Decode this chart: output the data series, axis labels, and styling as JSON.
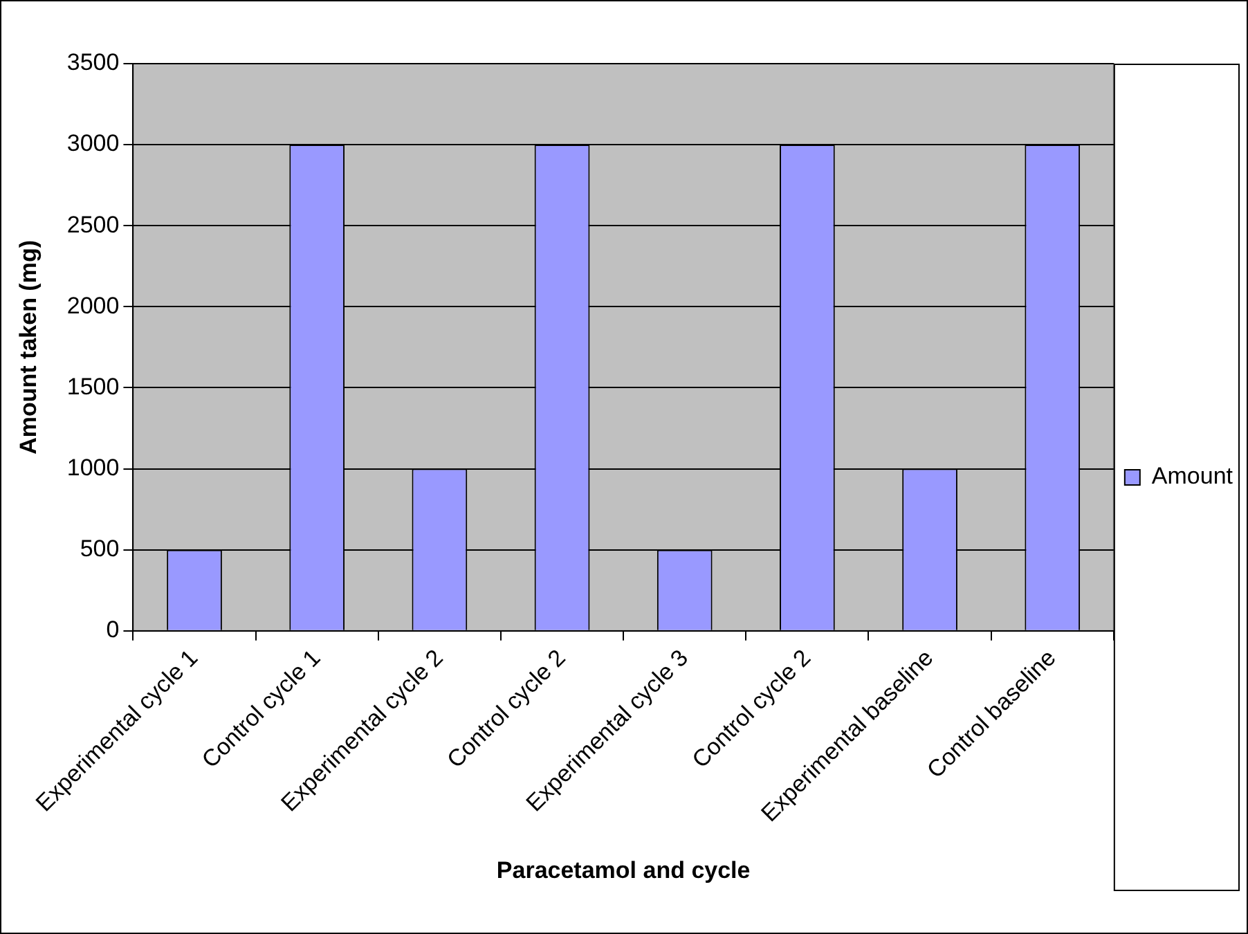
{
  "chart_data": {
    "type": "bar",
    "xlabel": "Paracetamol and cycle",
    "ylabel": "Amount taken (mg)",
    "categories": [
      "Experimental cycle 1",
      "Control cycle 1",
      "Experimental cycle 2",
      "Control cycle 2",
      "Experimental cycle 3",
      "Control cycle 2",
      "Experimental baseline",
      "Control baseline"
    ],
    "series": [
      {
        "name": "Amount",
        "color": "#9999ff",
        "values": [
          500,
          3000,
          1000,
          3000,
          500,
          3000,
          1000,
          3000
        ]
      }
    ],
    "ylim": [
      0,
      3500
    ],
    "yticks": [
      0,
      500,
      1000,
      1500,
      2000,
      2500,
      3000,
      3500
    ],
    "grid": "y",
    "legend": "right"
  }
}
